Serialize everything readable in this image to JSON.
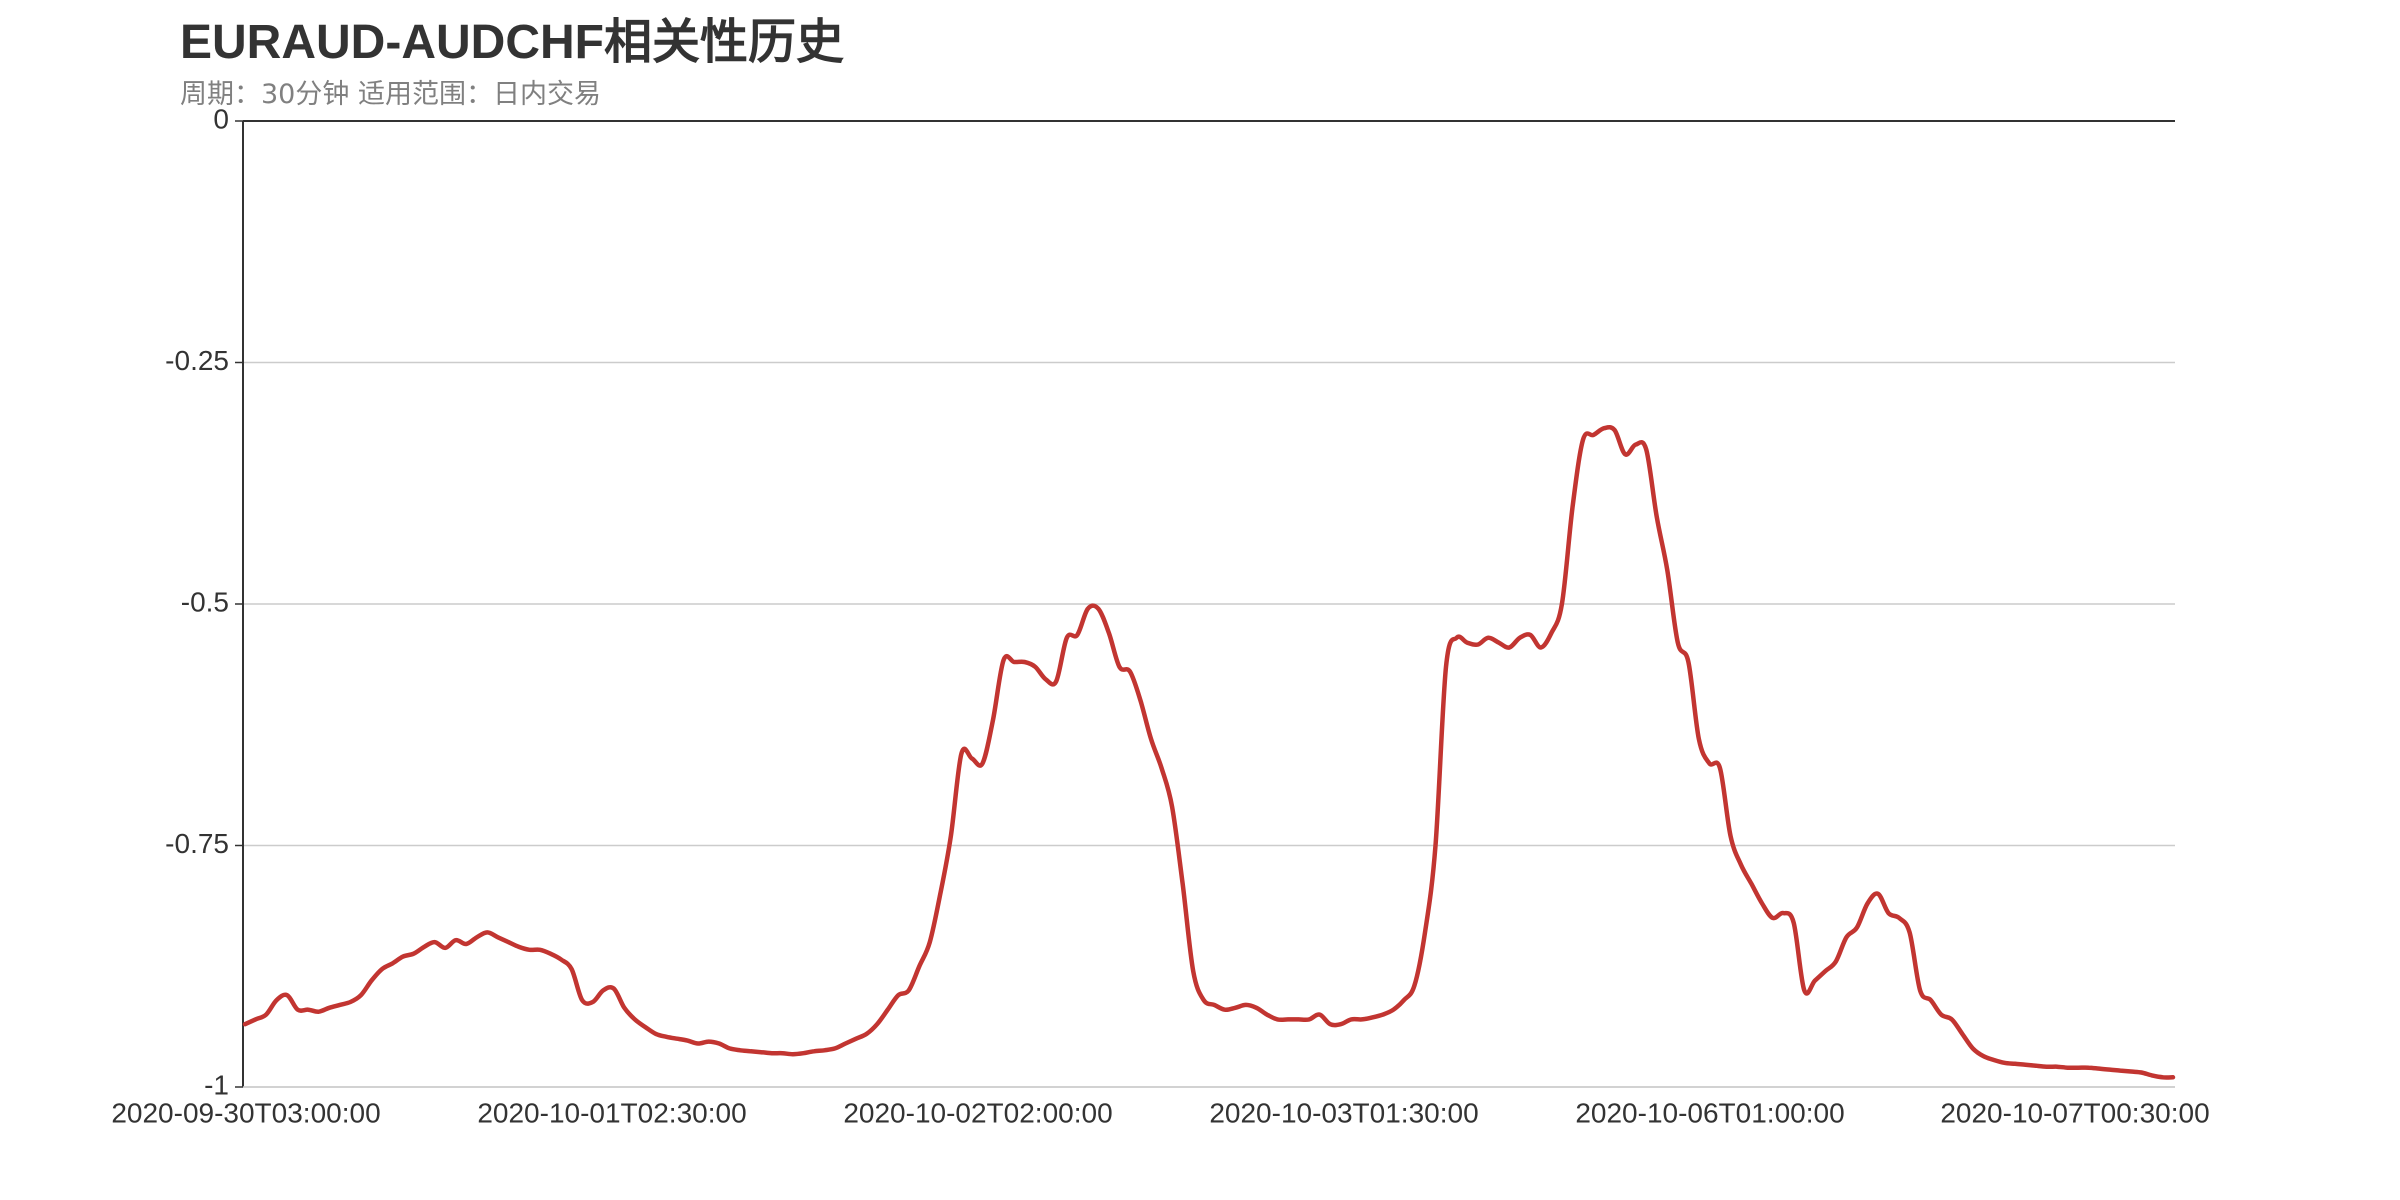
{
  "chart_data": {
    "type": "line",
    "title": "EURAUD-AUDCHF相关性历史",
    "subtitle": "周期：30分钟 适用范围：日内交易",
    "xlabel": "",
    "ylabel": "",
    "ylim": [
      -1,
      0
    ],
    "yticks": [
      0,
      -0.25,
      -0.5,
      -0.75,
      -1
    ],
    "ytick_labels": [
      "0",
      "-0.25",
      "-0.5",
      "-0.75",
      "-1"
    ],
    "xtick_labels": [
      "2020-09-30T03:00:00",
      "2020-10-01T02:30:00",
      "2020-10-02T02:00:00",
      "2020-10-03T01:30:00",
      "2020-10-06T01:00:00",
      "2020-10-07T00:30:00"
    ],
    "grid": true,
    "series": [
      {
        "color": "#c23531",
        "values": [
          -0.935,
          -0.93,
          -0.925,
          -0.91,
          -0.905,
          -0.92,
          -0.92,
          -0.922,
          -0.918,
          -0.915,
          -0.912,
          -0.905,
          -0.89,
          -0.878,
          -0.872,
          -0.865,
          -0.862,
          -0.855,
          -0.85,
          -0.856,
          -0.848,
          -0.852,
          -0.845,
          -0.84,
          -0.845,
          -0.85,
          -0.855,
          -0.858,
          -0.858,
          -0.862,
          -0.868,
          -0.878,
          -0.91,
          -0.912,
          -0.9,
          -0.898,
          -0.918,
          -0.93,
          -0.938,
          -0.945,
          -0.948,
          -0.95,
          -0.952,
          -0.955,
          -0.953,
          -0.955,
          -0.96,
          -0.962,
          -0.963,
          -0.964,
          -0.965,
          -0.965,
          -0.966,
          -0.965,
          -0.963,
          -0.962,
          -0.96,
          -0.955,
          -0.95,
          -0.945,
          -0.935,
          -0.92,
          -0.905,
          -0.9,
          -0.875,
          -0.85,
          -0.8,
          -0.74,
          -0.655,
          -0.66,
          -0.665,
          -0.62,
          -0.558,
          -0.56,
          -0.56,
          -0.565,
          -0.578,
          -0.58,
          -0.535,
          -0.532,
          -0.505,
          -0.505,
          -0.53,
          -0.565,
          -0.57,
          -0.6,
          -0.64,
          -0.67,
          -0.71,
          -0.79,
          -0.88,
          -0.91,
          -0.915,
          -0.92,
          -0.918,
          -0.915,
          -0.918,
          -0.925,
          -0.93,
          -0.93,
          -0.93,
          -0.93,
          -0.925,
          -0.935,
          -0.935,
          -0.93,
          -0.93,
          -0.928,
          -0.925,
          -0.92,
          -0.91,
          -0.895,
          -0.84,
          -0.75,
          -0.565,
          -0.535,
          -0.54,
          -0.542,
          -0.535,
          -0.54,
          -0.545,
          -0.535,
          -0.532,
          -0.545,
          -0.53,
          -0.5,
          -0.4,
          -0.33,
          -0.325,
          -0.318,
          -0.32,
          -0.345,
          -0.335,
          -0.34,
          -0.41,
          -0.465,
          -0.54,
          -0.56,
          -0.64,
          -0.665,
          -0.67,
          -0.74,
          -0.77,
          -0.79,
          -0.81,
          -0.825,
          -0.82,
          -0.83,
          -0.9,
          -0.89,
          -0.88,
          -0.87,
          -0.845,
          -0.835,
          -0.81,
          -0.8,
          -0.82,
          -0.825,
          -0.84,
          -0.9,
          -0.91,
          -0.925,
          -0.93,
          -0.945,
          -0.96,
          -0.968,
          -0.972,
          -0.975,
          -0.976,
          -0.977,
          -0.978,
          -0.979,
          -0.979,
          -0.98,
          -0.98,
          -0.98,
          -0.981,
          -0.982,
          -0.983,
          -0.984,
          -0.985,
          -0.988,
          -0.99,
          -0.99
        ]
      }
    ]
  }
}
